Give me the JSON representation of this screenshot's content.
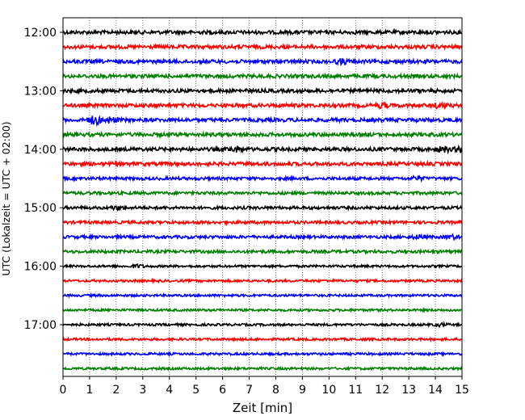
{
  "chart_data": {
    "type": "line",
    "title": "",
    "xlabel": "Zeit  [min]",
    "ylabel": "UTC (Lokalzeit = UTC + 02:00)",
    "xlim": [
      0,
      15
    ],
    "x_ticks": [
      "0",
      "1",
      "2",
      "3",
      "4",
      "5",
      "6",
      "7",
      "8",
      "9",
      "10",
      "11",
      "12",
      "13",
      "14",
      "15"
    ],
    "y_ticks": [
      "12:00",
      "13:00",
      "14:00",
      "15:00",
      "16:00",
      "17:00"
    ],
    "grid": "vertical dotted at each minute",
    "colors": [
      "#000000",
      "#ff0000",
      "#0000ff",
      "#008000"
    ],
    "series": [
      {
        "start": "12:00",
        "color": "#000000"
      },
      {
        "start": "12:15",
        "color": "#ff0000"
      },
      {
        "start": "12:30",
        "color": "#0000ff"
      },
      {
        "start": "12:45",
        "color": "#008000"
      },
      {
        "start": "13:00",
        "color": "#000000"
      },
      {
        "start": "13:15",
        "color": "#ff0000"
      },
      {
        "start": "13:30",
        "color": "#0000ff"
      },
      {
        "start": "13:45",
        "color": "#008000"
      },
      {
        "start": "14:00",
        "color": "#000000"
      },
      {
        "start": "14:15",
        "color": "#ff0000"
      },
      {
        "start": "14:30",
        "color": "#0000ff"
      },
      {
        "start": "14:45",
        "color": "#008000"
      },
      {
        "start": "15:00",
        "color": "#000000"
      },
      {
        "start": "15:15",
        "color": "#ff0000"
      },
      {
        "start": "15:30",
        "color": "#0000ff"
      },
      {
        "start": "15:45",
        "color": "#008000"
      },
      {
        "start": "16:00",
        "color": "#000000"
      },
      {
        "start": "16:15",
        "color": "#ff0000"
      },
      {
        "start": "16:30",
        "color": "#0000ff"
      },
      {
        "start": "16:45",
        "color": "#008000"
      },
      {
        "start": "17:00",
        "color": "#000000"
      },
      {
        "start": "17:15",
        "color": "#ff0000"
      },
      {
        "start": "17:30",
        "color": "#0000ff"
      },
      {
        "start": "17:45",
        "color": "#008000"
      }
    ]
  }
}
